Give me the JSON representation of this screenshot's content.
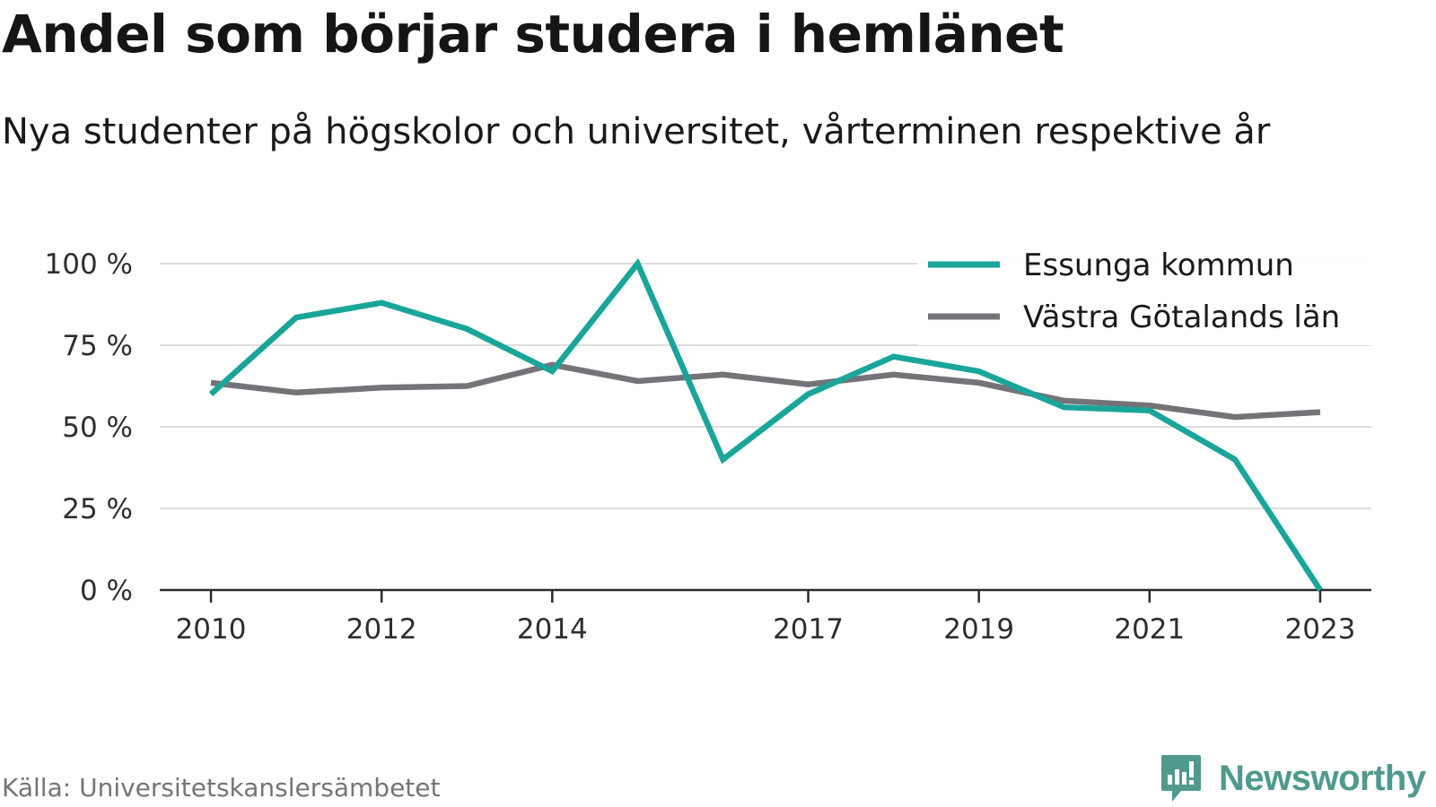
{
  "title": "Andel som börjar studera i hemlänet",
  "subtitle": "Nya studenter på högskolor och universitet, vårterminen respektive år",
  "source": "Källa: Universitetskanslersämbetet",
  "brand": "Newsworthy",
  "chart_data": {
    "type": "line",
    "title": "Andel som börjar studera i hemlänet",
    "subtitle": "Nya studenter på högskolor och universitet, vårterminen respektive år",
    "x": [
      2010,
      2011,
      2012,
      2013,
      2014,
      2015,
      2016,
      2017,
      2018,
      2019,
      2020,
      2021,
      2022,
      2023
    ],
    "x_tick_values": [
      2010,
      2012,
      2014,
      2017,
      2019,
      2021,
      2023
    ],
    "x_tick_labels": [
      "2010",
      "2012",
      "2014",
      "2017",
      "2019",
      "2021",
      "2023"
    ],
    "y_tick_values": [
      0,
      25,
      50,
      75,
      100
    ],
    "y_tick_labels": [
      "0 %",
      "25 %",
      "50 %",
      "75 %",
      "100 %"
    ],
    "ylim": [
      0,
      100
    ],
    "xlim": [
      2009.4,
      2023.6
    ],
    "grid": true,
    "legend_position": "top-right",
    "series": [
      {
        "name": "Essunga kommun",
        "color": "#1aa59a",
        "values": [
          60,
          83.5,
          88,
          80,
          67,
          100,
          40,
          60,
          71.5,
          67,
          56,
          55,
          40,
          0
        ]
      },
      {
        "name": "Västra Götalands län",
        "color": "#747378",
        "values": [
          63.5,
          60.5,
          62,
          62.5,
          69,
          64,
          66,
          63,
          66,
          63.5,
          58,
          56.5,
          53,
          54.5
        ]
      }
    ]
  },
  "colors": {
    "grid": "#dcdcdc",
    "axis": "#2b2b2b",
    "source": "#757575",
    "brand": "#4f9a8d"
  }
}
